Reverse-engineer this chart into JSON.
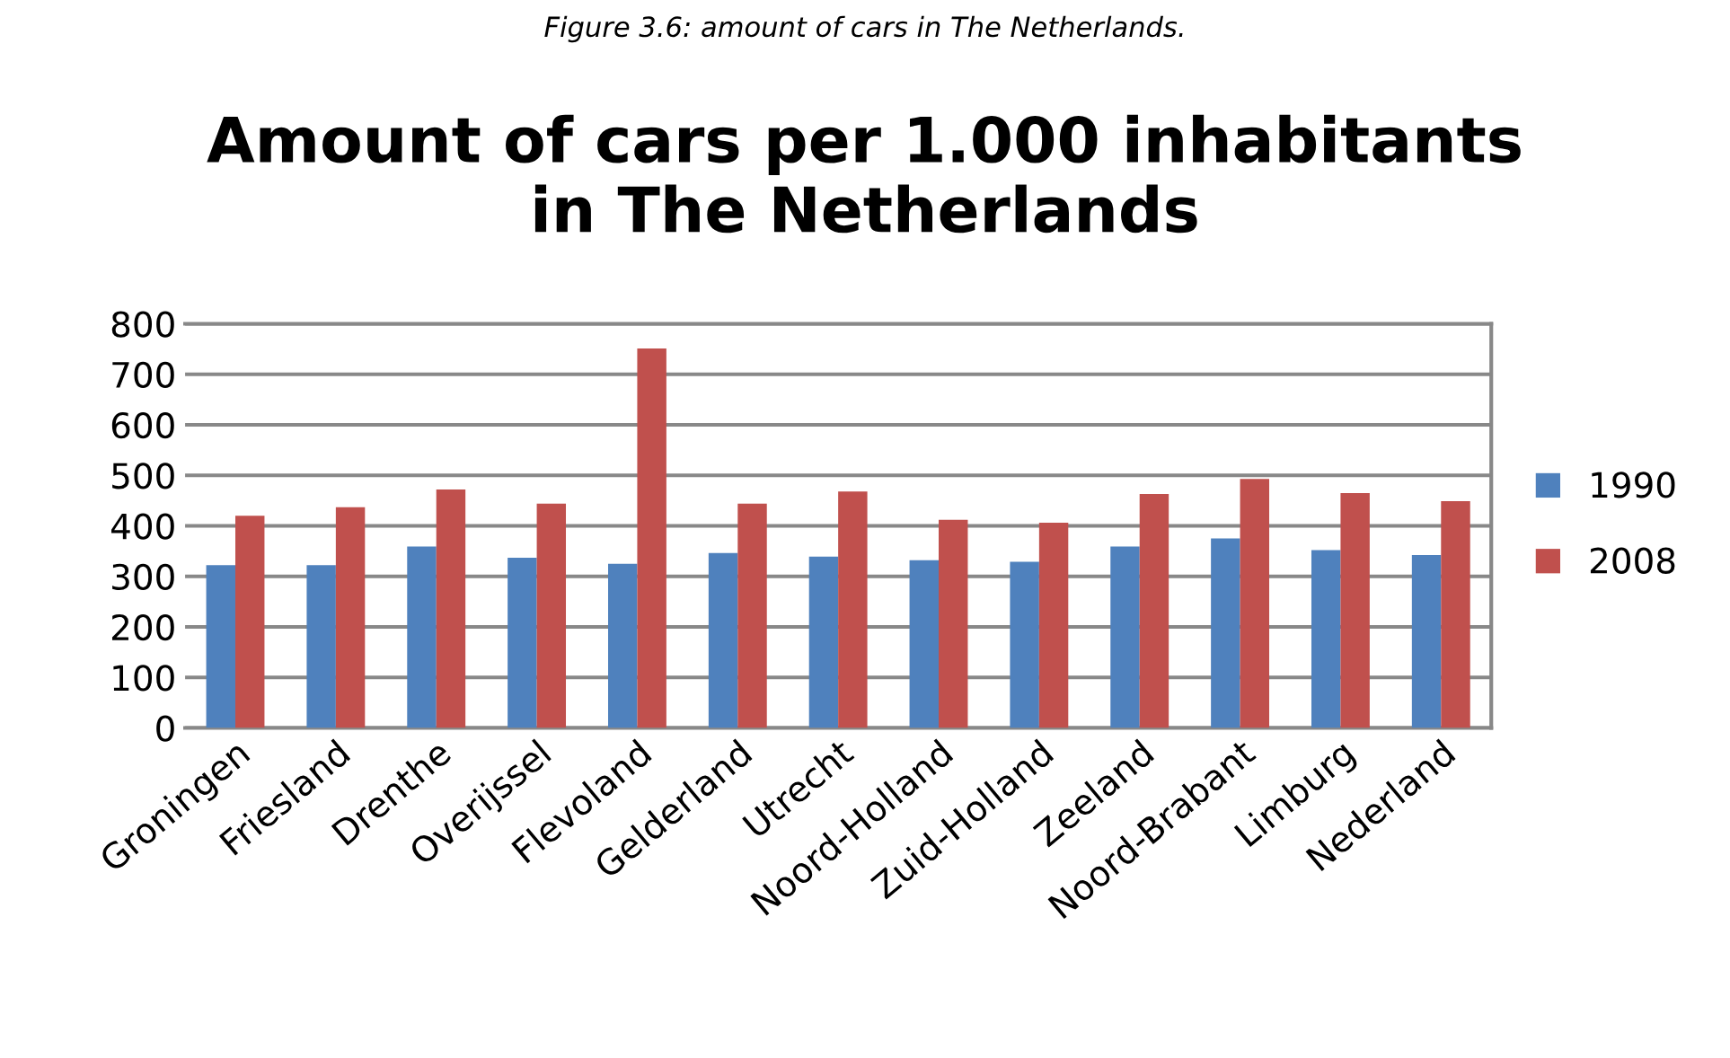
{
  "chart_data": {
    "type": "bar",
    "title": "Amount of cars per 1.000 inhabitants\nin The Netherlands",
    "annotations": [
      "Figure 3.6: amount of cars in The Netherlands."
    ],
    "categories": [
      "Groningen",
      "Friesland",
      "Drenthe",
      "Overijssel",
      "Flevoland",
      "Gelderland",
      "Utrecht",
      "Noord-Holland",
      "Zuid-Holland",
      "Zeeland",
      "Noord-Brabant",
      "Limburg",
      "Nederland"
    ],
    "series": [
      {
        "name": "1990",
        "color": "#4f81bd",
        "values": [
          322,
          322,
          359,
          337,
          325,
          346,
          339,
          332,
          329,
          359,
          375,
          352,
          342
        ]
      },
      {
        "name": "2008",
        "color": "#c0504d",
        "values": [
          420,
          437,
          472,
          444,
          751,
          444,
          468,
          412,
          406,
          463,
          493,
          465,
          449
        ]
      }
    ],
    "ylim": [
      0,
      800
    ],
    "yticks": [
      0,
      100,
      200,
      300,
      400,
      500,
      600,
      700,
      800
    ],
    "grid": "y",
    "legend": "right"
  }
}
